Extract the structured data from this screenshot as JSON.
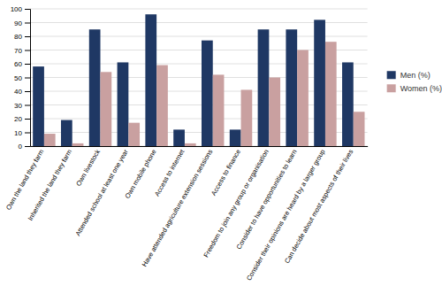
{
  "chart_data": {
    "type": "bar",
    "categories": [
      "Own the land they farm",
      "Inherited the land they farm",
      "Own livestock",
      "Attended school at least one year",
      "Own mobile phone",
      "Access to internet",
      "Have attended agriculture extension sessions",
      "Access to finance",
      "Freedom to join any group or organisation",
      "Consider to have opportunities to learn",
      "Consider their opinions are heard by a larger group",
      "Can decide about most aspects of their lives"
    ],
    "series": [
      {
        "name": "Men (%)",
        "color": "#1F3864",
        "values": [
          58,
          19,
          85,
          61,
          96,
          12,
          77,
          12,
          85,
          85,
          92,
          61
        ]
      },
      {
        "name": "Women (%)",
        "color": "#C9A0A0",
        "values": [
          9,
          2,
          54,
          17,
          59,
          2,
          52,
          41,
          50,
          70,
          76,
          25
        ]
      }
    ],
    "ylim": [
      0,
      100
    ],
    "yticks": [
      0,
      10,
      20,
      30,
      40,
      50,
      60,
      70,
      80,
      90,
      100
    ],
    "grid": true,
    "legend": "right"
  }
}
